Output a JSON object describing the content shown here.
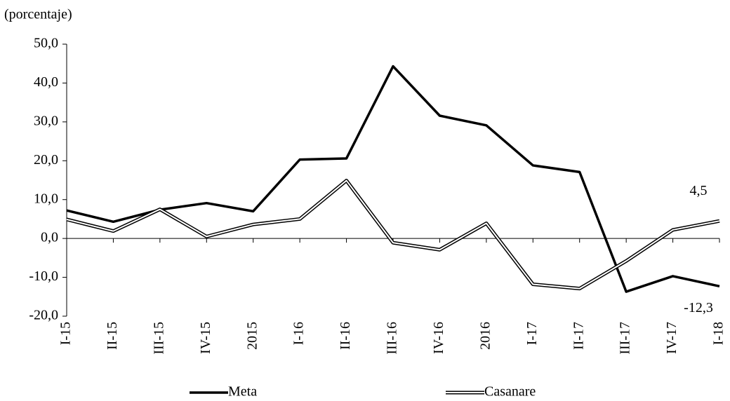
{
  "chart_data": {
    "type": "line",
    "subtitle": "(porcentaje)",
    "categories": [
      "I-15",
      "II-15",
      "III-15",
      "IV-15",
      "2015",
      "I-16",
      "II-16",
      "III-16",
      "IV-16",
      "2016",
      "I-17",
      "II-17",
      "III-17",
      "IV-17",
      "I-18"
    ],
    "series": [
      {
        "name": "Meta",
        "color": "#000000",
        "values": [
          7.2,
          4.3,
          7.4,
          9.1,
          7.0,
          20.3,
          20.6,
          44.3,
          31.6,
          29.1,
          18.8,
          17.1,
          -13.7,
          -9.7,
          -12.3
        ],
        "value_labels": [
          null,
          null,
          null,
          null,
          null,
          null,
          null,
          null,
          null,
          null,
          null,
          null,
          null,
          null,
          "-12,3"
        ]
      },
      {
        "name": "Casanare",
        "color": "#000000",
        "values": [
          4.9,
          1.9,
          7.5,
          0.5,
          3.6,
          5.0,
          14.9,
          -1.1,
          -2.9,
          3.9,
          -11.8,
          -12.9,
          -5.8,
          2.2,
          4.5
        ],
        "value_labels": [
          null,
          null,
          null,
          null,
          null,
          null,
          null,
          null,
          null,
          null,
          null,
          null,
          null,
          null,
          "4,5"
        ]
      }
    ],
    "ylim": [
      -20,
      50
    ],
    "yticks": [
      {
        "value": -20,
        "label": "-20,0"
      },
      {
        "value": -10,
        "label": "-10,0"
      },
      {
        "value": 0,
        "label": "0,0"
      },
      {
        "value": 10,
        "label": "10,0"
      },
      {
        "value": 20,
        "label": "20,0"
      },
      {
        "value": 30,
        "label": "30,0"
      },
      {
        "value": 40,
        "label": "40,0"
      },
      {
        "value": 50,
        "label": "50,0"
      }
    ],
    "grid": false
  }
}
